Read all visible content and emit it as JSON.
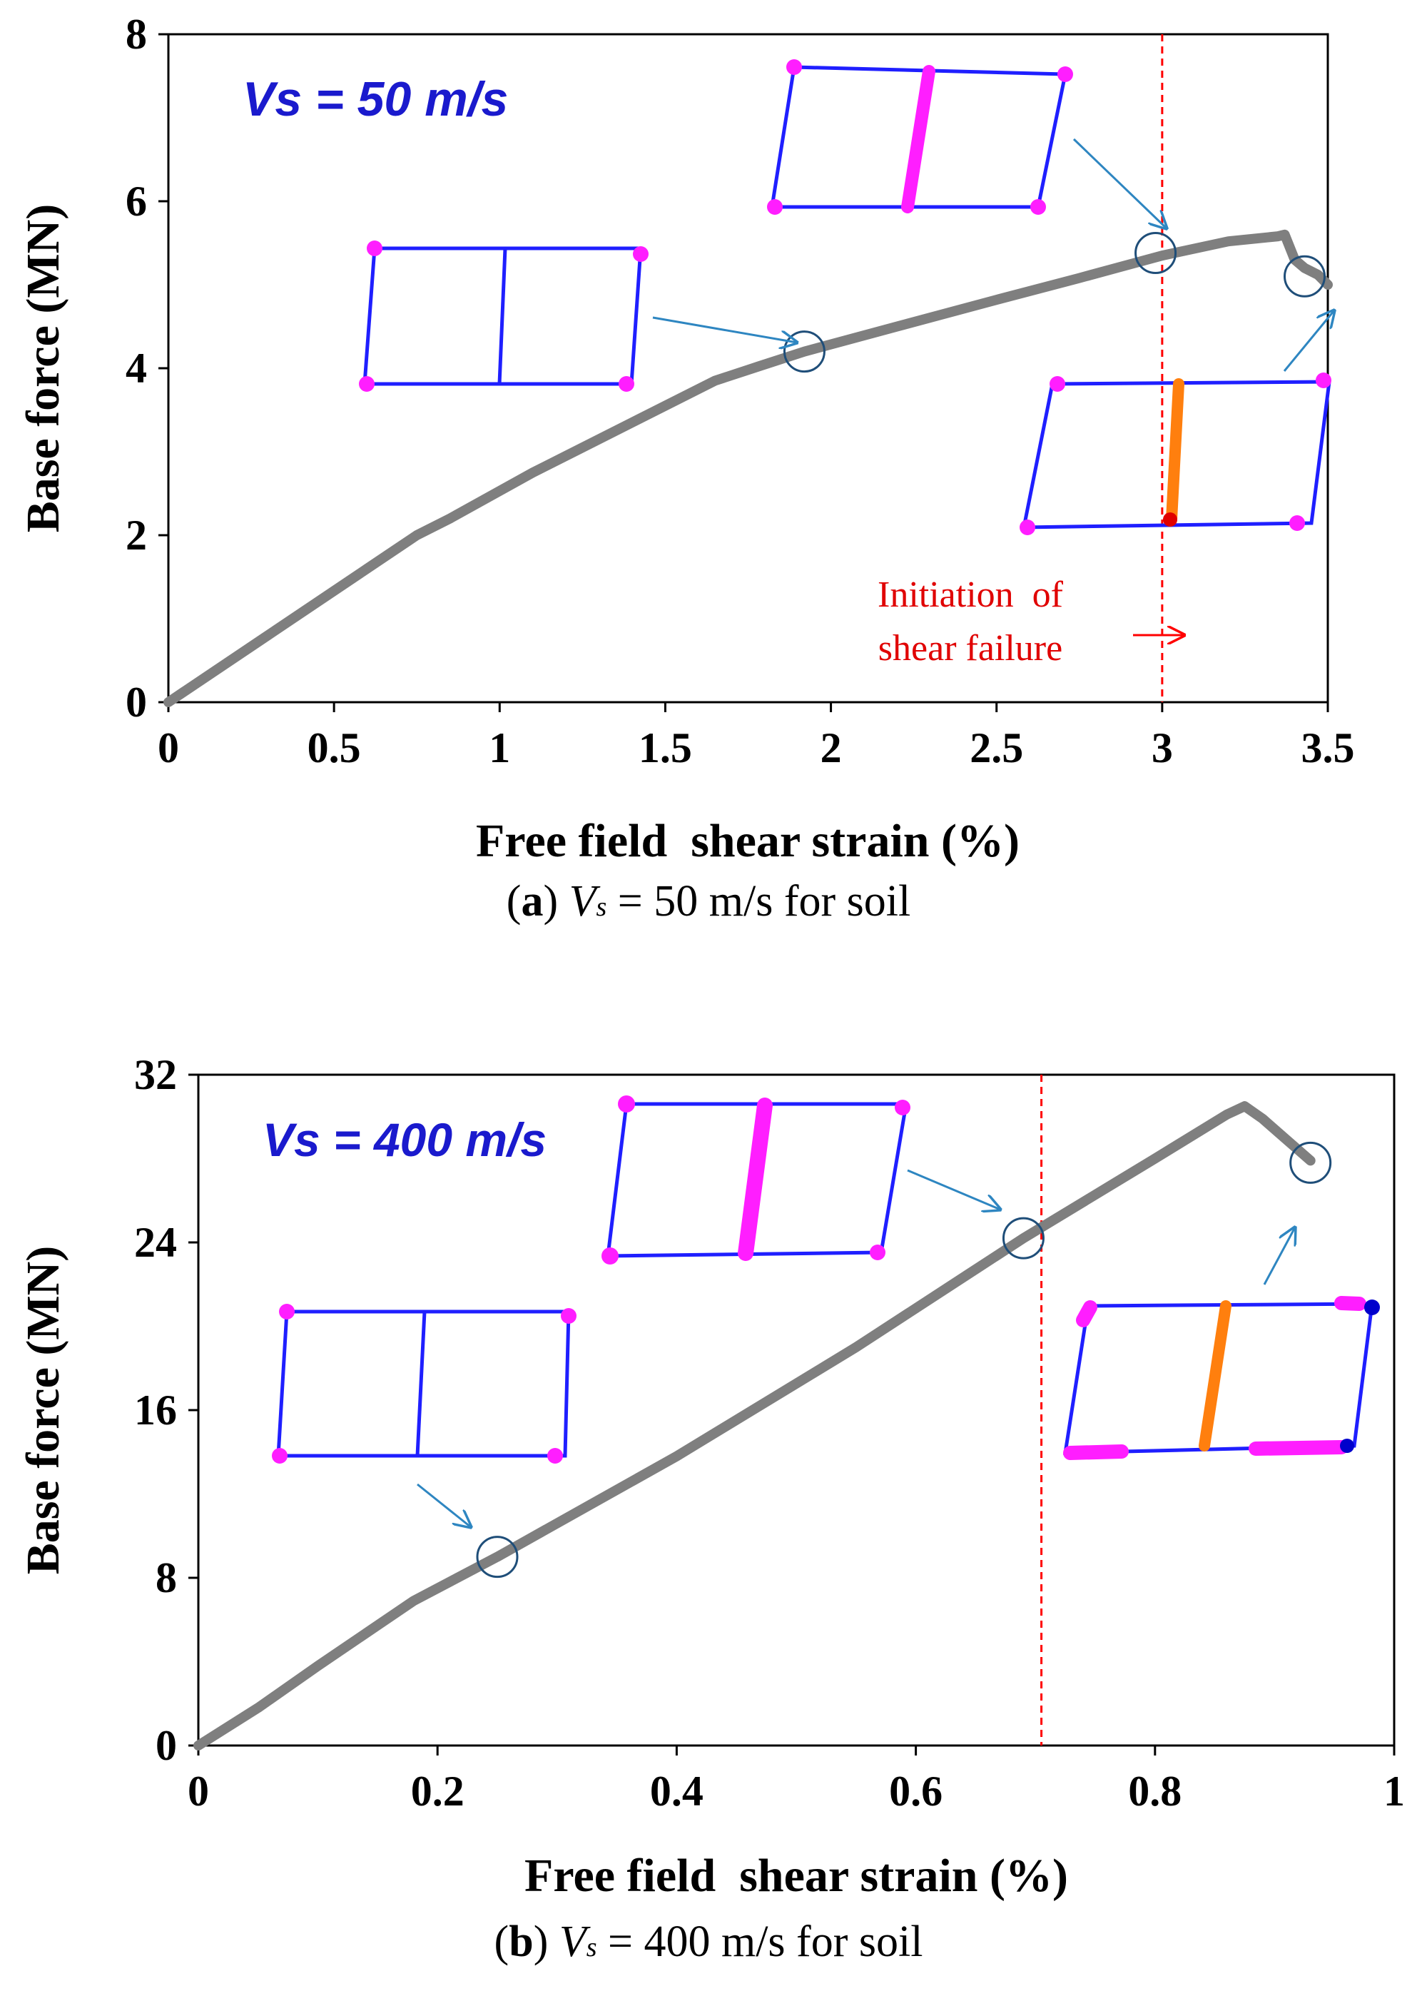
{
  "colors": {
    "curve": "#7f7f7f",
    "frame_blue": "#1f1fff",
    "hinge_magenta": "#ff1eff",
    "hinge_orange": "#ff7f0e",
    "hinge_red": "#e00000",
    "hinge_blue": "#0000cc",
    "annotation_blue": "#2e86c1",
    "failure_red": "#ff0000",
    "vs_label": "#1a1acd"
  },
  "chart_data": [
    {
      "type": "line",
      "panel": "a",
      "xlabel": "Free field  shear strain (%)",
      "ylabel": "Base force (MN)",
      "xlim": [
        0,
        3.5
      ],
      "ylim": [
        0,
        8
      ],
      "xticks": [
        0,
        0.5,
        1,
        1.5,
        2,
        2.5,
        3,
        3.5
      ],
      "xtick_labels": [
        "0",
        "0.5",
        "1",
        "1.5",
        "2",
        "2.5",
        "3",
        "3.5"
      ],
      "yticks": [
        0,
        2,
        4,
        6,
        8
      ],
      "ytick_labels": [
        "0",
        "2",
        "4",
        "6",
        "8"
      ],
      "grid": false,
      "vs_label": "Vs = 50 m/s",
      "failure_line_x": 3.0,
      "failure_text_line1": "Initiation  of",
      "failure_text_line2": "shear failure",
      "series": [
        {
          "name": "Base force",
          "x": [
            0,
            0.75,
            0.85,
            1.1,
            1.4,
            1.65,
            1.78,
            1.92,
            2.2,
            2.5,
            2.75,
            3.0,
            3.2,
            3.35,
            3.37,
            3.4,
            3.43,
            3.47,
            3.5
          ],
          "y": [
            0,
            2.0,
            2.2,
            2.75,
            3.35,
            3.85,
            4.02,
            4.2,
            4.5,
            4.82,
            5.08,
            5.35,
            5.52,
            5.58,
            5.6,
            5.3,
            5.2,
            5.12,
            5.0
          ]
        }
      ],
      "markers": [
        {
          "name": "elastic-stage",
          "x": 1.92,
          "y": 4.2
        },
        {
          "name": "shear-failure-initiation",
          "x": 2.98,
          "y": 5.38
        },
        {
          "name": "post-peak",
          "x": 3.43,
          "y": 5.1
        }
      ]
    },
    {
      "type": "line",
      "panel": "b",
      "xlabel": "Free field  shear strain (%)",
      "ylabel": "Base force (MN)",
      "xlim": [
        0,
        1
      ],
      "ylim": [
        0,
        32
      ],
      "xticks": [
        0,
        0.2,
        0.4,
        0.6,
        0.8,
        1
      ],
      "xtick_labels": [
        "0",
        "0.2",
        "0.4",
        "0.6",
        "0.8",
        "1"
      ],
      "yticks": [
        0,
        8,
        16,
        24,
        32
      ],
      "ytick_labels": [
        "0",
        "8",
        "16",
        "24",
        "32"
      ],
      "grid": false,
      "vs_label": "Vs = 400 m/s",
      "failure_line_x": 0.705,
      "series": [
        {
          "name": "Base force",
          "x": [
            0,
            0.05,
            0.1,
            0.18,
            0.25,
            0.4,
            0.55,
            0.69,
            0.8,
            0.86,
            0.875,
            0.89,
            0.91,
            0.93
          ],
          "y": [
            0,
            1.8,
            3.8,
            6.9,
            9.0,
            13.8,
            19.0,
            24.2,
            28.0,
            30.1,
            30.5,
            29.9,
            28.9,
            27.9
          ]
        }
      ],
      "markers": [
        {
          "name": "elastic-stage",
          "x": 0.25,
          "y": 9.0
        },
        {
          "name": "shear-failure-initiation",
          "x": 0.69,
          "y": 24.2
        },
        {
          "name": "post-peak",
          "x": 0.93,
          "y": 27.8
        }
      ]
    }
  ],
  "captions": {
    "a": {
      "label": "a",
      "var": "V",
      "sub": "s",
      "text": " = 50 m/s for soil"
    },
    "b": {
      "label": "b",
      "var": "V",
      "sub": "s",
      "text": " = 400 m/s for soil"
    }
  }
}
